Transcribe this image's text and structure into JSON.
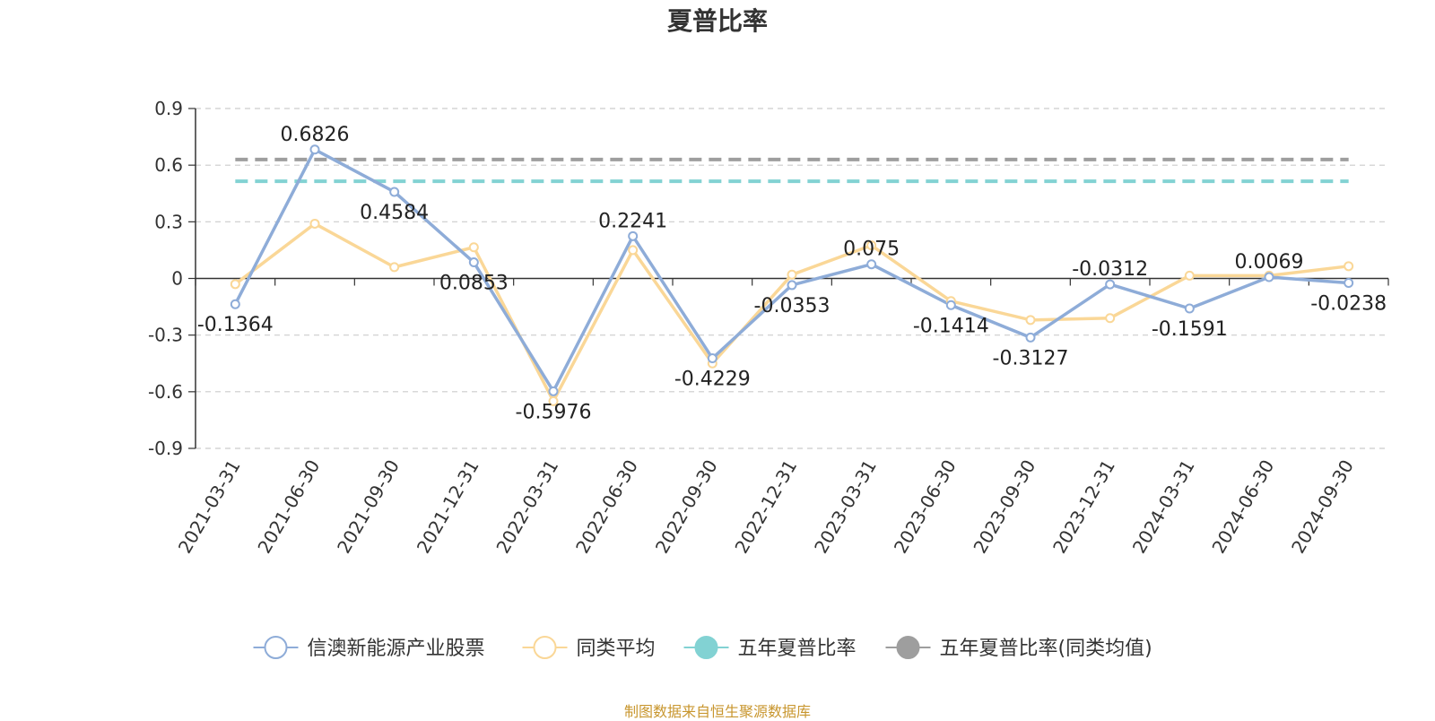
{
  "chart_data": {
    "type": "line",
    "title": "夏普比率",
    "x": [
      "2021-03-31",
      "2021-06-30",
      "2021-09-30",
      "2021-12-31",
      "2022-03-31",
      "2022-06-30",
      "2022-09-30",
      "2022-12-31",
      "2023-03-31",
      "2023-06-30",
      "2023-09-30",
      "2023-12-31",
      "2024-03-31",
      "2024-06-30",
      "2024-09-30"
    ],
    "y_ticks": [
      "0.9",
      "0.6",
      "0.3",
      "0",
      "-0.3",
      "-0.6",
      "-0.9"
    ],
    "ylim": [
      -0.9,
      0.9
    ],
    "grid": true,
    "legend_position": "bottom-center",
    "series": [
      {
        "name": "信澳新能源产业股票",
        "color": "#8eacd8",
        "values": [
          -0.1364,
          0.6826,
          0.4584,
          0.0853,
          -0.5976,
          0.2241,
          -0.4229,
          -0.0353,
          0.075,
          -0.1414,
          -0.3127,
          -0.0312,
          -0.1591,
          0.0069,
          -0.0238
        ],
        "labels": [
          "-0.1364",
          "0.6826",
          "0.4584",
          "0.0853",
          "-0.5976",
          "0.2241",
          "-0.4229",
          "-0.0353",
          "0.075",
          "-0.1414",
          "-0.3127",
          "-0.0312",
          "-0.1591",
          "0.0069",
          "-0.0238"
        ]
      },
      {
        "name": "同类平均",
        "color": "#fad797",
        "values": [
          -0.03,
          0.29,
          0.06,
          0.165,
          -0.65,
          0.15,
          -0.45,
          0.02,
          0.175,
          -0.12,
          -0.22,
          -0.21,
          0.015,
          0.015,
          0.065
        ]
      },
      {
        "name": "五年夏普比率",
        "color": "#82d2d3",
        "dashed": true,
        "constant": 0.515
      },
      {
        "name": "五年夏普比率(同类均值)",
        "color": "#9e9e9e",
        "dashed": true,
        "constant": 0.63
      }
    ]
  },
  "footer": {
    "source": "制图数据来自恒生聚源数据库"
  }
}
